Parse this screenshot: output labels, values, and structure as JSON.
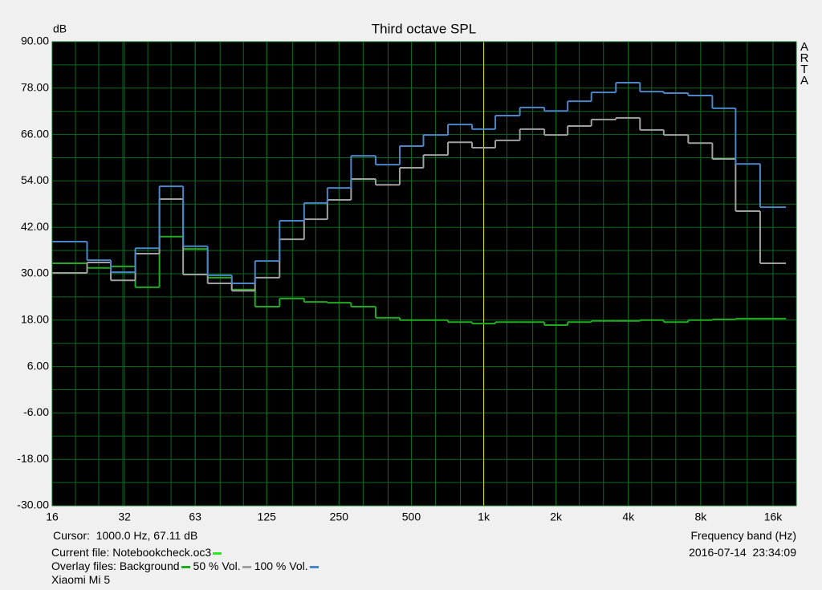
{
  "chart_data": {
    "type": "step",
    "title": "Third octave SPL",
    "y_label": "dB",
    "x_label": "Frequency band (Hz)",
    "brand": "ARTA",
    "cursor": {
      "x": 1000,
      "label": "Cursor:  1000.0 Hz, 67.11 dB",
      "color": "#d8d820"
    },
    "current_file": {
      "label": "Current file: Notebookcheck.oc3",
      "color": "#22ee22"
    },
    "overlay_label": "Overlay files:",
    "timestamp": "2016-07-14  23:34:09",
    "device": "Xiaomi Mi 5",
    "log_x": true,
    "grid": true,
    "grid_color": "#0d6b1f",
    "plot_background": "#000000",
    "xlim": [
      16,
      20000
    ],
    "xticks": [
      16,
      32,
      63,
      125,
      250,
      500,
      {
        "value": 1000,
        "label": "1k"
      },
      {
        "value": 2000,
        "label": "2k"
      },
      {
        "value": 4000,
        "label": "4k"
      },
      {
        "value": 8000,
        "label": "8k"
      },
      {
        "value": 16000,
        "label": "16k"
      }
    ],
    "ylim": [
      -30,
      90
    ],
    "yticks": [
      {
        "value": -30,
        "label": "-30.00"
      },
      {
        "value": -18,
        "label": "-18.00"
      },
      {
        "value": -6,
        "label": "-6.00"
      },
      {
        "value": 6,
        "label": "6.00"
      },
      {
        "value": 18,
        "label": "18.00"
      },
      {
        "value": 30,
        "label": "30.00"
      },
      {
        "value": 42,
        "label": "42.00"
      },
      {
        "value": 54,
        "label": "54.00"
      },
      {
        "value": 66,
        "label": "66.00"
      },
      {
        "value": 78,
        "label": "78.00"
      },
      {
        "value": 90,
        "label": "90.00"
      }
    ],
    "x": [
      20,
      25,
      31.5,
      40,
      50,
      63,
      80,
      100,
      125,
      160,
      200,
      250,
      315,
      400,
      500,
      630,
      800,
      1000,
      1250,
      1600,
      2000,
      2500,
      3150,
      4000,
      5000,
      6300,
      8000,
      10000,
      12500,
      16000
    ],
    "series": [
      {
        "name": "Background",
        "color": "#22aa22",
        "values": [
          32.7,
          31.5,
          31.9,
          26.5,
          39.6,
          36.4,
          29.0,
          25.9,
          21.5,
          23.6,
          22.7,
          22.5,
          21.5,
          18.6,
          18.0,
          18.0,
          17.5,
          17.1,
          17.5,
          17.5,
          16.7,
          17.5,
          17.8,
          17.8,
          18.0,
          17.5,
          18.0,
          18.2,
          18.4,
          18.4
        ]
      },
      {
        "name": "50 % Vol.",
        "color": "#a0a0a0",
        "values": [
          30.2,
          32.9,
          28.3,
          35.2,
          49.3,
          29.8,
          27.5,
          25.6,
          29.0,
          38.9,
          44.1,
          49.1,
          54.5,
          53.0,
          57.4,
          60.7,
          64.0,
          62.6,
          64.5,
          67.4,
          65.9,
          68.2,
          69.9,
          70.3,
          67.2,
          65.9,
          63.8,
          59.7,
          46.2,
          32.7
        ]
      },
      {
        "name": "100 % Vol.",
        "color": "#4a86c8",
        "values": [
          38.3,
          33.5,
          30.4,
          36.6,
          52.6,
          37.1,
          29.6,
          27.5,
          33.3,
          43.7,
          48.3,
          52.2,
          60.5,
          58.2,
          63.0,
          65.9,
          68.6,
          67.4,
          70.9,
          73.0,
          72.1,
          74.6,
          76.9,
          79.4,
          77.1,
          76.7,
          76.1,
          72.8,
          58.4,
          47.2
        ]
      }
    ]
  }
}
